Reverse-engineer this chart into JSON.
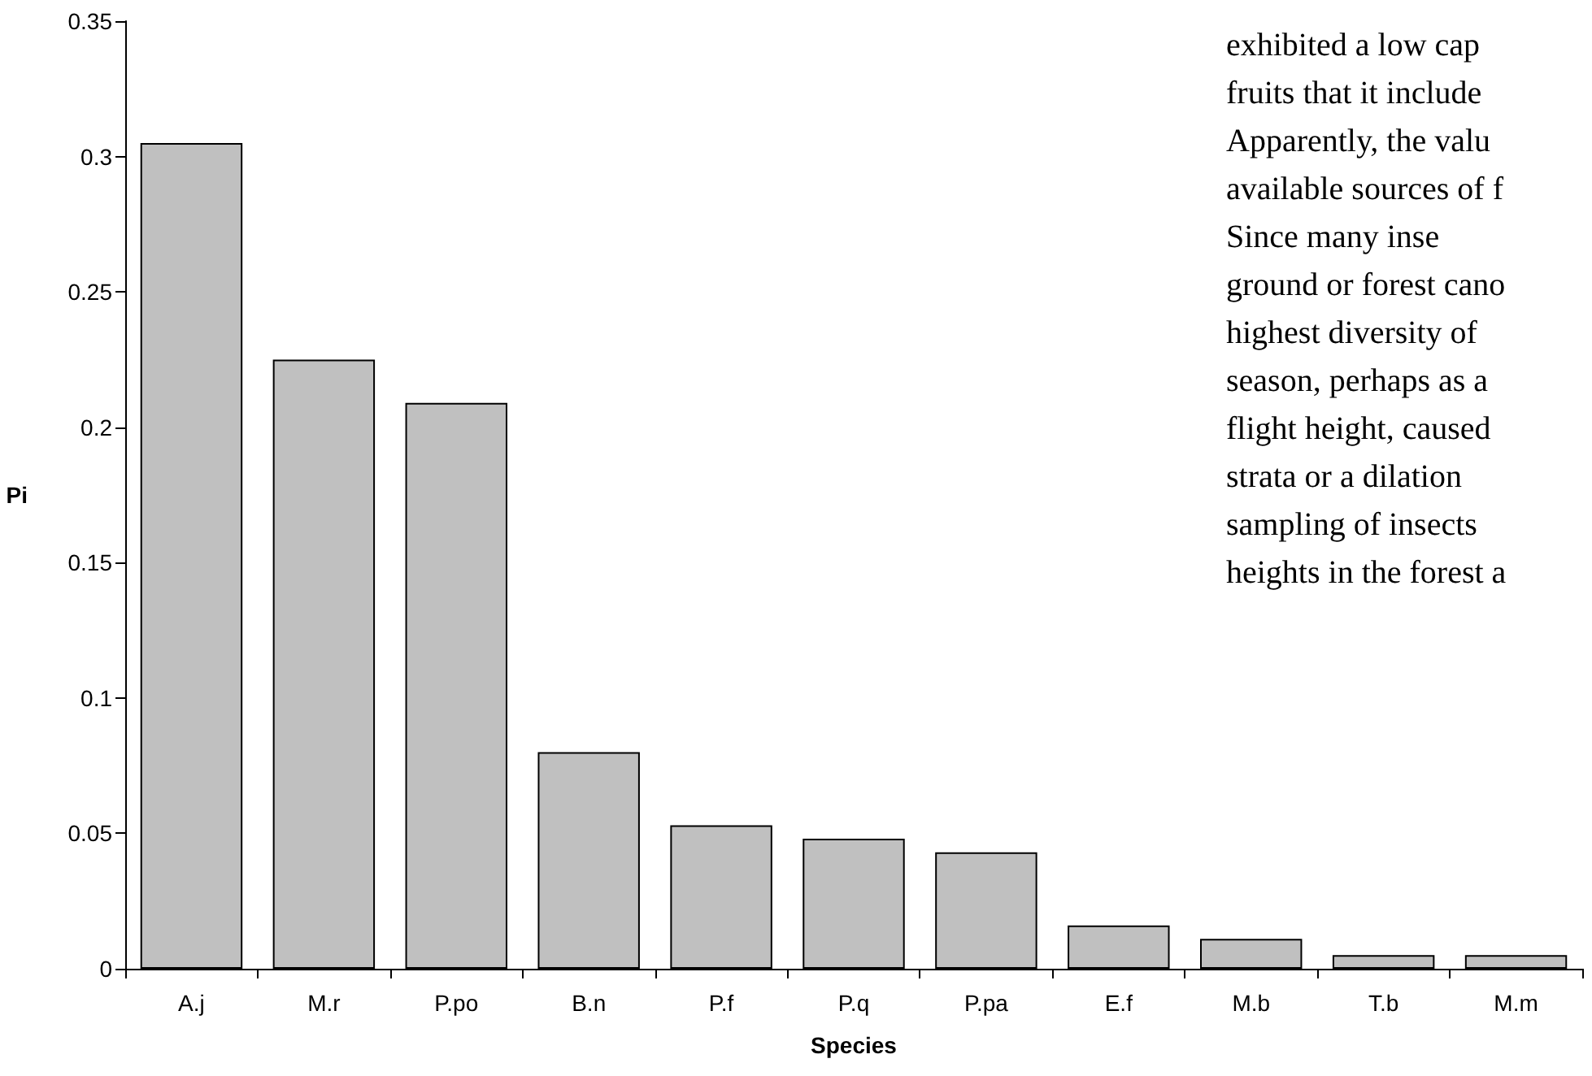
{
  "chart_data": {
    "type": "bar",
    "xlabel": "Species",
    "ylabel": "Pi",
    "categories": [
      "A.j",
      "M.r",
      "P.po",
      "B.n",
      "P.f",
      "P.q",
      "P.pa",
      "E.f",
      "M.b",
      "T.b",
      "M.m"
    ],
    "values": [
      0.305,
      0.225,
      0.209,
      0.08,
      0.053,
      0.048,
      0.043,
      0.016,
      0.011,
      0.005,
      0.005
    ],
    "color": "#c0c0c0",
    "ylim": [
      0,
      0.35
    ],
    "yticks": [
      0,
      0.05,
      0.1,
      0.15,
      0.2,
      0.25,
      0.3,
      0.35
    ],
    "grid": false,
    "annotations": [
      "exhibited a low cap",
      "fruits that it include",
      "Apparently, the valu",
      "available sources of f",
      "Since many inse",
      "ground or forest cano",
      "highest diversity of",
      "season, perhaps as a",
      "flight height, caused",
      "strata or a dilation",
      "sampling of insects",
      "heights in the forest a"
    ]
  }
}
